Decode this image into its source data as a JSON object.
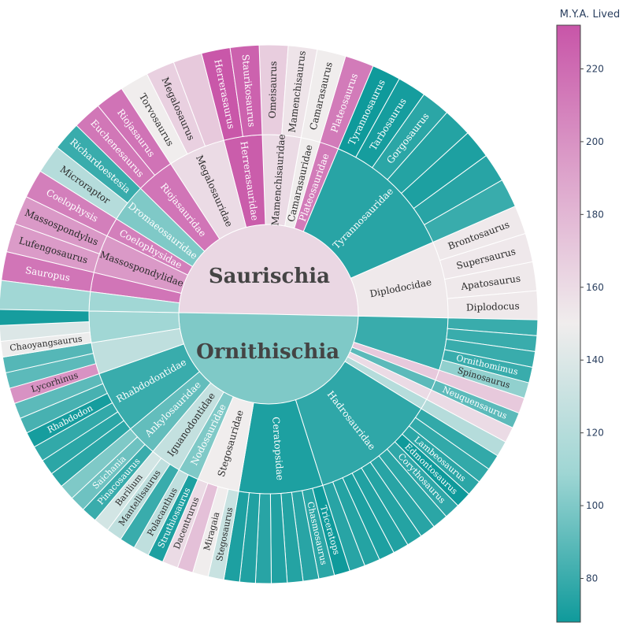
{
  "chart_data": {
    "type": "sunburst",
    "colorbar": {
      "title": "M.Y.A. Lived",
      "min": 68,
      "max": 232,
      "ticks": [
        80,
        100,
        120,
        140,
        160,
        180,
        200,
        220
      ],
      "colorscale": [
        "#0f9a9b",
        "#9fd6d4",
        "#f0eded",
        "#dda3cb",
        "#c855a8"
      ]
    },
    "roots": [
      {
        "name": "Saurischia",
        "value": 162,
        "families": [
          {
            "name": "Diplodocidae",
            "value": 152,
            "genera": [
              {
                "name": "Brontosaurus",
                "value": 152
              },
              {
                "name": "Supersaurus",
                "value": 153
              },
              {
                "name": "Apatosaurus",
                "value": 152
              },
              {
                "name": "Diplodocus",
                "value": 152
              }
            ]
          },
          {
            "name": "Tyrannosauridae",
            "value": 75,
            "genera": [
              {
                "name": "Tyrannosaurus",
                "value": 67
              },
              {
                "name": "Tarbosaurus",
                "value": 70
              },
              {
                "name": "Gorgosaurus",
                "value": 76
              },
              {
                "name": "",
                "value": 74
              },
              {
                "name": "",
                "value": 72
              },
              {
                "name": "",
                "value": 75
              },
              {
                "name": "",
                "value": 80
              }
            ]
          },
          {
            "name": "Plateosauridae",
            "value": 212,
            "genera": [
              {
                "name": "Plateosaurus",
                "value": 212
              }
            ]
          },
          {
            "name": "Camarasauridae",
            "value": 150,
            "genera": [
              {
                "name": "Camarasaurus",
                "value": 150
              }
            ]
          },
          {
            "name": "Mamenchisauridae",
            "value": 160,
            "genera": [
              {
                "name": "Omeisaurus",
                "value": 168
              },
              {
                "name": "Mamenchisaurus",
                "value": 155
              }
            ]
          },
          {
            "name": "Herrerasauridae",
            "value": 228,
            "genera": [
              {
                "name": "Herrerasaurus",
                "value": 231
              },
              {
                "name": "Staurikosaurus",
                "value": 225
              }
            ]
          },
          {
            "name": "Megalosauridae",
            "value": 160,
            "genera": [
              {
                "name": "Torvosaurus",
                "value": 150
              },
              {
                "name": "Megalosaurus",
                "value": 166
              },
              {
                "name": "",
                "value": 170
              }
            ]
          },
          {
            "name": "Riojasauridae",
            "value": 215,
            "genera": [
              {
                "name": "Euchenesaurus",
                "value": 214
              },
              {
                "name": "Riojasaurus",
                "value": 216
              }
            ]
          },
          {
            "name": "Dromaeosauridae",
            "value": 100,
            "genera": [
              {
                "name": "Microraptor",
                "value": 120
              },
              {
                "name": "Richardoestesia",
                "value": 80
              }
            ]
          },
          {
            "name": "Coelophysidae",
            "value": 210,
            "genera": [
              {
                "name": "Coelophysis",
                "value": 210
              }
            ]
          },
          {
            "name": "Massospondylidae",
            "value": 196,
            "genera": [
              {
                "name": "Lufengosaurus",
                "value": 195
              },
              {
                "name": "Massospondylus",
                "value": 196
              }
            ]
          },
          {
            "name": "",
            "value": 215,
            "genera": [
              {
                "name": "Sauropus",
                "value": 215
              }
            ]
          },
          {
            "name": "",
            "value": 110,
            "genera": [
              {
                "name": "",
                "value": 110
              }
            ]
          }
        ]
      },
      {
        "name": "Ornithischia",
        "value": 100,
        "families": [
          {
            "name": "",
            "value": 80,
            "genera": [
              {
                "name": "",
                "value": 80
              },
              {
                "name": "",
                "value": 80
              },
              {
                "name": "",
                "value": 80
              },
              {
                "name": "Ornithomimus",
                "value": 80
              },
              {
                "name": "Spinosaurus",
                "value": 105
              }
            ]
          },
          {
            "name": "",
            "value": 170,
            "genera": [
              {
                "name": "",
                "value": 170
              }
            ]
          },
          {
            "name": "",
            "value": 90,
            "genera": [
              {
                "name": "Neuquensaurus",
                "value": 90
              }
            ]
          },
          {
            "name": "",
            "value": 160,
            "genera": [
              {
                "name": "",
                "value": 160
              }
            ]
          },
          {
            "name": "",
            "value": 120,
            "genera": [
              {
                "name": "",
                "value": 120
              }
            ]
          },
          {
            "name": "Hadrosauridae",
            "value": 77,
            "genera": [
              {
                "name": "",
                "value": 78
              },
              {
                "name": "",
                "value": 78
              },
              {
                "name": "Lambeosaurus",
                "value": 76
              },
              {
                "name": "Edmontosaurus",
                "value": 67
              },
              {
                "name": "Corythosaurus",
                "value": 77
              },
              {
                "name": "",
                "value": 76
              },
              {
                "name": "",
                "value": 75
              },
              {
                "name": "",
                "value": 74
              },
              {
                "name": "",
                "value": 73
              },
              {
                "name": "",
                "value": 72
              },
              {
                "name": "",
                "value": 74
              },
              {
                "name": "",
                "value": 75
              }
            ]
          },
          {
            "name": "Ceratopsidae",
            "value": 72,
            "genera": [
              {
                "name": "Triceratops",
                "value": 67
              },
              {
                "name": "Chasmosaurus",
                "value": 76
              },
              {
                "name": "",
                "value": 75
              },
              {
                "name": "",
                "value": 74
              },
              {
                "name": "",
                "value": 73
              },
              {
                "name": "",
                "value": 75
              },
              {
                "name": "",
                "value": 73
              },
              {
                "name": "",
                "value": 72
              }
            ]
          },
          {
            "name": "Stegosauridae",
            "value": 150,
            "genera": [
              {
                "name": "Stegosaurus",
                "value": 130
              },
              {
                "name": "Miragaia",
                "value": 150
              },
              {
                "name": "",
                "value": 175
              },
              {
                "name": "Dacentrurus",
                "value": 160
              }
            ]
          },
          {
            "name": "Nodosauridae",
            "value": 100,
            "genera": [
              {
                "name": "Struthiosaurus",
                "value": 72
              },
              {
                "name": "Polacanthus",
                "value": 125
              }
            ]
          },
          {
            "name": "Iguanodontidae",
            "value": 127,
            "genera": [
              {
                "name": "",
                "value": 80
              },
              {
                "name": "Mantellisaurus",
                "value": 125
              },
              {
                "name": "Barilium",
                "value": 135
              }
            ]
          },
          {
            "name": "Ankylosauridae",
            "value": 92,
            "genera": [
              {
                "name": "Pinacosaurus",
                "value": 80
              },
              {
                "name": "Saichania",
                "value": 95
              },
              {
                "name": "",
                "value": 100
              }
            ]
          },
          {
            "name": "Rhabdodontidae",
            "value": 80,
            "genera": [
              {
                "name": "",
                "value": 76
              },
              {
                "name": "",
                "value": 76
              },
              {
                "name": "",
                "value": 78
              },
              {
                "name": "Rhabdodon",
                "value": 70
              },
              {
                "name": "",
                "value": 84
              },
              {
                "name": "",
                "value": 90
              }
            ]
          },
          {
            "name": "",
            "value": 125,
            "genera": [
              {
                "name": "Lycorhinus",
                "value": 200
              },
              {
                "name": "",
                "value": 90
              },
              {
                "name": "",
                "value": 88
              }
            ]
          },
          {
            "name": "",
            "value": 110,
            "genera": [
              {
                "name": "Chaoyangsaurus",
                "value": 148
              },
              {
                "name": "",
                "value": 140
              },
              {
                "name": "",
                "value": 70
              }
            ]
          }
        ]
      }
    ]
  }
}
